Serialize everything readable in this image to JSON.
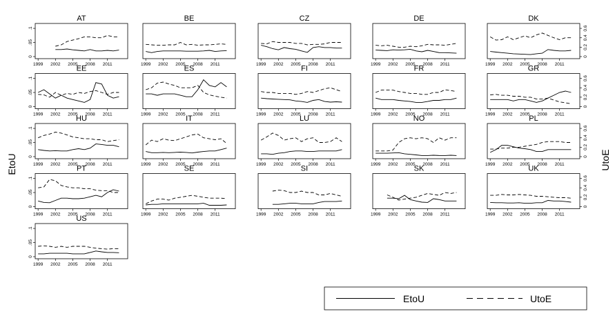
{
  "figure": {
    "left_axis_label": "EtoU",
    "right_axis_label": "UtoE",
    "legend": [
      {
        "label": "EtoU",
        "style": "solid"
      },
      {
        "label": "UtoE",
        "style": "dashed"
      }
    ]
  },
  "chart_data": {
    "type": "line",
    "layout": "small-multiples",
    "x_ticks": [
      "1999",
      "2002",
      "2005",
      "2008",
      "2011"
    ],
    "xlim": [
      1998.5,
      2014.5
    ],
    "left_axis": {
      "label": "EtoU",
      "ticks": [
        "0",
        ".05",
        ".1"
      ],
      "ylim": [
        0,
        0.11
      ]
    },
    "right_axis": {
      "label": "UtoE",
      "ticks": [
        "0",
        "0.2",
        "0.4",
        "0.6"
      ],
      "ylim": [
        0,
        0.66
      ]
    },
    "legend_position": "bottom-right",
    "x": [
      1999,
      2000,
      2001,
      2002,
      2003,
      2004,
      2005,
      2006,
      2007,
      2008,
      2009,
      2010,
      2011,
      2012,
      2013
    ],
    "panels": [
      {
        "name": "AT",
        "EtoU": [
          null,
          null,
          null,
          0.025,
          0.025,
          0.027,
          0.024,
          0.022,
          0.02,
          0.025,
          0.02,
          0.02,
          0.022,
          0.02,
          0.023
        ],
        "UtoE": [
          null,
          null,
          null,
          0.22,
          0.25,
          0.32,
          0.35,
          0.38,
          0.42,
          0.42,
          0.4,
          0.4,
          0.45,
          0.42,
          0.42
        ]
      },
      {
        "name": "BE",
        "EtoU": [
          0.018,
          0.014,
          0.018,
          0.02,
          0.02,
          0.02,
          0.02,
          0.019,
          0.019,
          0.019,
          0.02,
          0.022,
          0.018,
          0.02,
          0.021
        ],
        "UtoE": [
          0.26,
          0.25,
          0.24,
          0.24,
          0.25,
          0.25,
          0.3,
          0.25,
          0.26,
          0.24,
          0.25,
          0.25,
          0.26,
          0.27,
          0.26
        ]
      },
      {
        "name": "CZ",
        "EtoU": [
          0.04,
          0.035,
          0.028,
          0.024,
          0.032,
          0.028,
          0.026,
          0.02,
          0.015,
          0.032,
          0.035,
          0.032,
          0.032,
          0.03,
          0.03
        ],
        "UtoE": [
          0.28,
          0.27,
          0.32,
          0.3,
          0.3,
          0.3,
          0.28,
          0.28,
          0.25,
          0.26,
          0.26,
          0.27,
          0.3,
          0.3,
          0.3
        ]
      },
      {
        "name": "DE",
        "EtoU": [
          0.023,
          0.022,
          0.021,
          0.024,
          0.023,
          0.024,
          0.026,
          0.02,
          0.017,
          0.022,
          0.018,
          0.014,
          0.014,
          0.013,
          0.012
        ],
        "UtoE": [
          0.24,
          0.23,
          0.24,
          0.22,
          0.2,
          0.2,
          0.22,
          0.21,
          0.23,
          0.26,
          0.25,
          0.25,
          0.24,
          0.26,
          0.28
        ]
      },
      {
        "name": "DK",
        "EtoU": [
          0.018,
          0.016,
          0.014,
          0.012,
          0.01,
          0.009,
          0.008,
          0.007,
          0.01,
          0.012,
          0.025,
          0.022,
          0.02,
          0.02,
          0.022
        ],
        "UtoE": [
          0.42,
          0.35,
          0.36,
          0.42,
          0.36,
          0.4,
          0.44,
          0.4,
          0.46,
          0.5,
          0.45,
          0.4,
          0.36,
          0.4,
          0.4
        ]
      },
      {
        "name": "EE",
        "EtoU": [
          0.05,
          0.06,
          0.045,
          0.03,
          0.04,
          0.03,
          0.025,
          0.02,
          0.015,
          0.025,
          0.085,
          0.08,
          0.04,
          0.03,
          0.035
        ],
        "UtoE": [
          0.26,
          0.25,
          0.2,
          0.3,
          0.24,
          0.28,
          0.26,
          0.3,
          0.28,
          0.32,
          0.34,
          0.3,
          0.26,
          0.3,
          0.3
        ]
      },
      {
        "name": "ES",
        "EtoU": [
          0.045,
          0.045,
          0.04,
          0.045,
          0.045,
          0.045,
          0.04,
          0.035,
          0.035,
          0.06,
          0.095,
          0.075,
          0.07,
          0.085,
          0.07
        ],
        "UtoE": [
          0.36,
          0.4,
          0.5,
          0.52,
          0.48,
          0.45,
          0.4,
          0.4,
          0.4,
          0.45,
          0.3,
          0.25,
          0.22,
          0.2,
          0.18
        ]
      },
      {
        "name": "FI",
        "EtoU": [
          0.03,
          0.028,
          0.027,
          0.026,
          0.025,
          0.024,
          0.02,
          0.018,
          0.015,
          0.022,
          0.025,
          0.018,
          0.016,
          0.017,
          0.016
        ],
        "UtoE": [
          0.32,
          0.3,
          0.3,
          0.28,
          0.28,
          0.28,
          0.26,
          0.28,
          0.32,
          0.3,
          0.34,
          0.38,
          0.4,
          0.36,
          0.32
        ]
      },
      {
        "name": "FR",
        "EtoU": [
          0.03,
          0.025,
          0.025,
          0.025,
          0.022,
          0.02,
          0.018,
          0.015,
          0.015,
          0.018,
          0.022,
          0.022,
          0.025,
          0.025,
          0.03
        ],
        "UtoE": [
          0.3,
          0.35,
          0.35,
          0.35,
          0.32,
          0.3,
          0.28,
          0.28,
          0.26,
          0.26,
          0.3,
          0.3,
          0.36,
          0.34,
          0.32
        ]
      },
      {
        "name": "GR",
        "EtoU": [
          0.025,
          0.025,
          0.025,
          0.025,
          0.02,
          0.025,
          0.025,
          0.02,
          0.015,
          0.02,
          0.03,
          0.04,
          0.05,
          0.055,
          0.05
        ],
        "UtoE": [
          0.25,
          0.26,
          0.24,
          0.24,
          0.22,
          0.22,
          0.2,
          0.2,
          0.16,
          0.16,
          0.18,
          0.14,
          0.1,
          0.08,
          0.06
        ]
      },
      {
        "name": "HU",
        "EtoU": [
          0.025,
          0.022,
          0.02,
          0.021,
          0.02,
          0.02,
          0.025,
          0.028,
          0.025,
          0.03,
          0.045,
          0.043,
          0.04,
          0.04,
          0.035
        ],
        "UtoE": [
          0.4,
          0.45,
          0.48,
          0.52,
          0.5,
          0.46,
          0.42,
          0.4,
          0.38,
          0.38,
          0.36,
          0.36,
          0.32,
          0.34,
          0.36
        ]
      },
      {
        "name": "IT",
        "EtoU": [
          0.018,
          0.014,
          0.014,
          0.015,
          0.014,
          0.015,
          0.016,
          0.015,
          0.013,
          0.016,
          0.018,
          0.02,
          0.02,
          0.025,
          0.03
        ],
        "UtoE": [
          0.25,
          0.35,
          0.32,
          0.38,
          0.35,
          0.34,
          0.38,
          0.42,
          0.46,
          0.48,
          0.4,
          0.38,
          0.36,
          0.38,
          0.28
        ]
      },
      {
        "name": "LU",
        "EtoU": [
          0.01,
          0.01,
          0.008,
          0.012,
          0.014,
          0.018,
          0.02,
          0.02,
          0.018,
          0.018,
          0.02,
          0.02,
          0.02,
          0.02,
          0.025
        ],
        "UtoE": [
          0.35,
          0.42,
          0.5,
          0.45,
          0.35,
          0.38,
          0.4,
          0.32,
          0.38,
          0.4,
          0.3,
          0.3,
          0.32,
          0.4,
          0.32
        ]
      },
      {
        "name": "NO",
        "EtoU": [
          0.012,
          0.012,
          0.012,
          0.013,
          0.014,
          0.01,
          0.008,
          0.006,
          0.004,
          0.004,
          0.005,
          0.004,
          0.004,
          0.005,
          0.004
        ],
        "UtoE": [
          0.12,
          0.12,
          0.12,
          0.14,
          0.3,
          0.38,
          0.4,
          0.38,
          0.4,
          0.38,
          0.3,
          0.4,
          0.35,
          0.4,
          0.4
        ]
      },
      {
        "name": "PL",
        "EtoU": [
          0.015,
          0.025,
          0.04,
          0.04,
          0.035,
          0.03,
          0.028,
          0.025,
          0.018,
          0.018,
          0.025,
          0.025,
          0.025,
          0.025,
          0.025
        ],
        "UtoE": [
          0.16,
          0.16,
          0.18,
          0.18,
          0.2,
          0.2,
          0.22,
          0.24,
          0.26,
          0.3,
          0.32,
          0.32,
          0.32,
          0.3,
          0.3
        ]
      },
      {
        "name": "PT",
        "EtoU": [
          0.02,
          0.015,
          0.014,
          0.022,
          0.03,
          0.03,
          0.028,
          0.028,
          0.03,
          0.035,
          0.04,
          0.035,
          0.05,
          0.06,
          0.055
        ],
        "UtoE": [
          0.4,
          0.42,
          0.58,
          0.55,
          0.45,
          0.42,
          0.4,
          0.4,
          0.38,
          0.38,
          0.35,
          0.34,
          0.34,
          0.3,
          0.3
        ]
      },
      {
        "name": "SE",
        "EtoU": [
          0.006,
          0.008,
          0.008,
          0.01,
          0.01,
          0.01,
          0.01,
          0.01,
          0.01,
          0.01,
          0.012,
          0.005,
          0.005,
          0.005,
          0.006
        ],
        "UtoE": [
          0.06,
          0.12,
          0.16,
          0.16,
          0.14,
          0.18,
          0.2,
          0.22,
          0.24,
          0.22,
          0.2,
          0.18,
          0.18,
          0.18,
          0.17
        ]
      },
      {
        "name": "SI",
        "EtoU": [
          null,
          null,
          0.008,
          0.008,
          0.01,
          0.012,
          0.012,
          0.01,
          0.01,
          0.01,
          0.015,
          0.018,
          0.018,
          0.018,
          0.02
        ],
        "UtoE": [
          null,
          null,
          0.33,
          0.35,
          0.34,
          0.3,
          0.3,
          0.33,
          0.3,
          0.3,
          0.25,
          0.25,
          0.28,
          0.25,
          0.22
        ]
      },
      {
        "name": "SK",
        "EtoU": [
          null,
          null,
          0.03,
          0.03,
          0.028,
          0.04,
          0.025,
          0.02,
          0.016,
          0.015,
          0.028,
          0.025,
          0.02,
          0.02,
          0.02
        ],
        "UtoE": [
          null,
          null,
          0.25,
          0.2,
          0.14,
          0.16,
          0.18,
          0.2,
          0.24,
          0.28,
          0.26,
          0.24,
          0.3,
          0.28,
          0.3
        ]
      },
      {
        "name": "UK",
        "EtoU": [
          0.015,
          0.014,
          0.014,
          0.013,
          0.013,
          0.014,
          0.012,
          0.012,
          0.014,
          0.014,
          0.022,
          0.02,
          0.02,
          0.018,
          0.016
        ],
        "UtoE": [
          0.24,
          0.24,
          0.26,
          0.25,
          0.25,
          0.26,
          0.25,
          0.24,
          0.22,
          0.22,
          0.21,
          0.2,
          0.19,
          0.19,
          0.18
        ]
      },
      {
        "name": "US",
        "EtoU": [
          0.01,
          0.01,
          0.012,
          0.012,
          0.012,
          0.012,
          0.01,
          0.01,
          0.01,
          0.015,
          0.02,
          0.017,
          0.015,
          0.015,
          0.014
        ],
        "UtoE": [
          0.22,
          0.23,
          0.22,
          0.2,
          0.22,
          0.2,
          0.22,
          0.22,
          0.22,
          0.2,
          0.18,
          0.17,
          0.16,
          0.17,
          0.17
        ]
      }
    ]
  }
}
